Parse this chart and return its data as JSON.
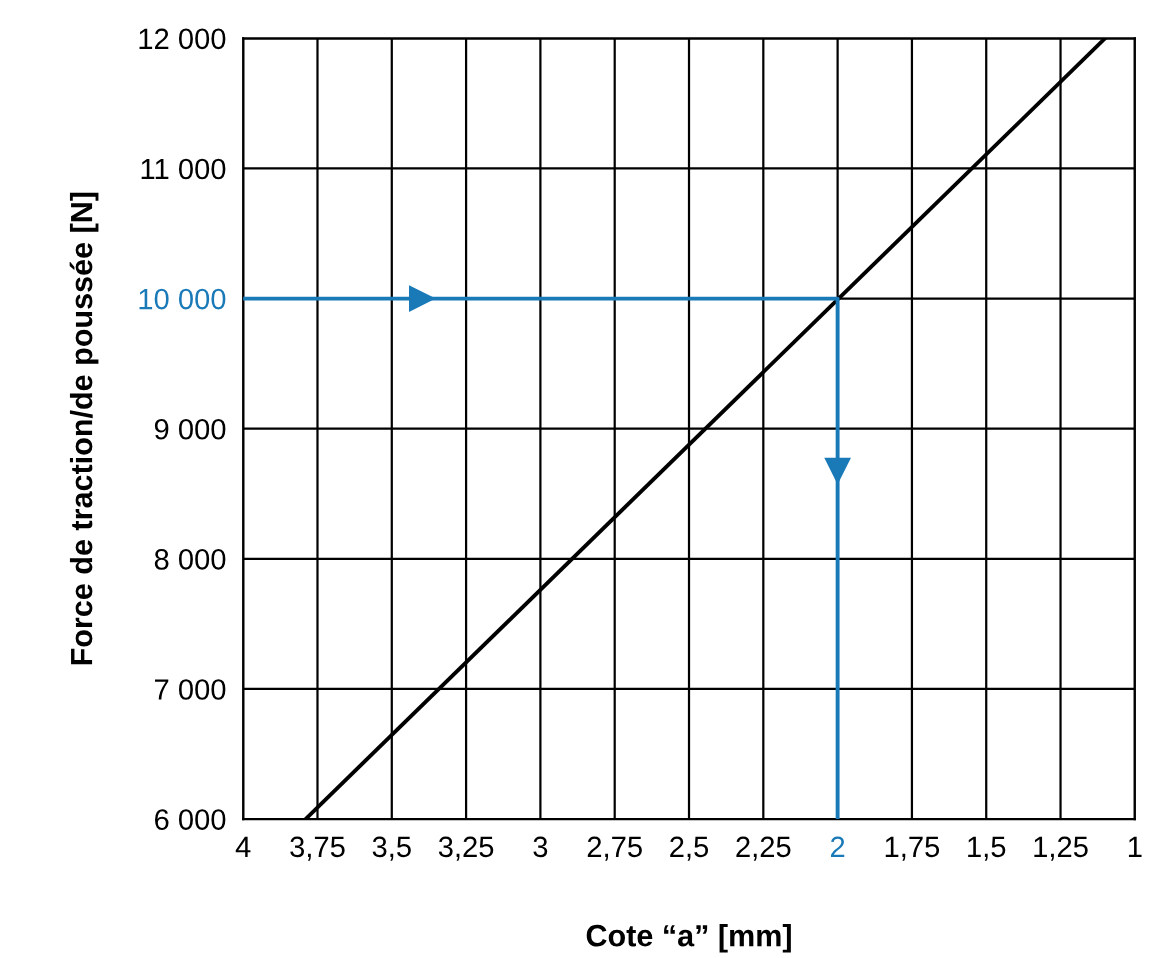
{
  "chart_data": {
    "type": "line",
    "xlabel": "Cote “a” [mm]",
    "ylabel": "Force de traction/de poussée [N]",
    "xlim": [
      4,
      1
    ],
    "ylim": [
      6000,
      12000
    ],
    "xticks": [
      {
        "value": 4,
        "label": "4"
      },
      {
        "value": 3.75,
        "label": "3,75"
      },
      {
        "value": 3.5,
        "label": "3,5"
      },
      {
        "value": 3.25,
        "label": "3,25"
      },
      {
        "value": 3,
        "label": "3"
      },
      {
        "value": 2.75,
        "label": "2,75"
      },
      {
        "value": 2.5,
        "label": "2,5"
      },
      {
        "value": 2.25,
        "label": "2,25"
      },
      {
        "value": 2,
        "label": "2"
      },
      {
        "value": 1.75,
        "label": "1,75"
      },
      {
        "value": 1.5,
        "label": "1,5"
      },
      {
        "value": 1.25,
        "label": "1,25"
      },
      {
        "value": 1,
        "label": "1"
      }
    ],
    "yticks": [
      {
        "value": 6000,
        "label": "6 000"
      },
      {
        "value": 7000,
        "label": "7 000"
      },
      {
        "value": 8000,
        "label": "8 000"
      },
      {
        "value": 9000,
        "label": "9 000"
      },
      {
        "value": 10000,
        "label": "10 000"
      },
      {
        "value": 11000,
        "label": "11 000"
      },
      {
        "value": 12000,
        "label": "12 000"
      }
    ],
    "grid": true,
    "series": [
      {
        "color": "#000000",
        "x": [
          3.79,
          1.1
        ],
        "values": [
          6000,
          12000
        ]
      },
      {
        "color": "#1a7ab8",
        "x": [
          4,
          2,
          2
        ],
        "values": [
          10000,
          10000,
          6000
        ]
      }
    ]
  }
}
